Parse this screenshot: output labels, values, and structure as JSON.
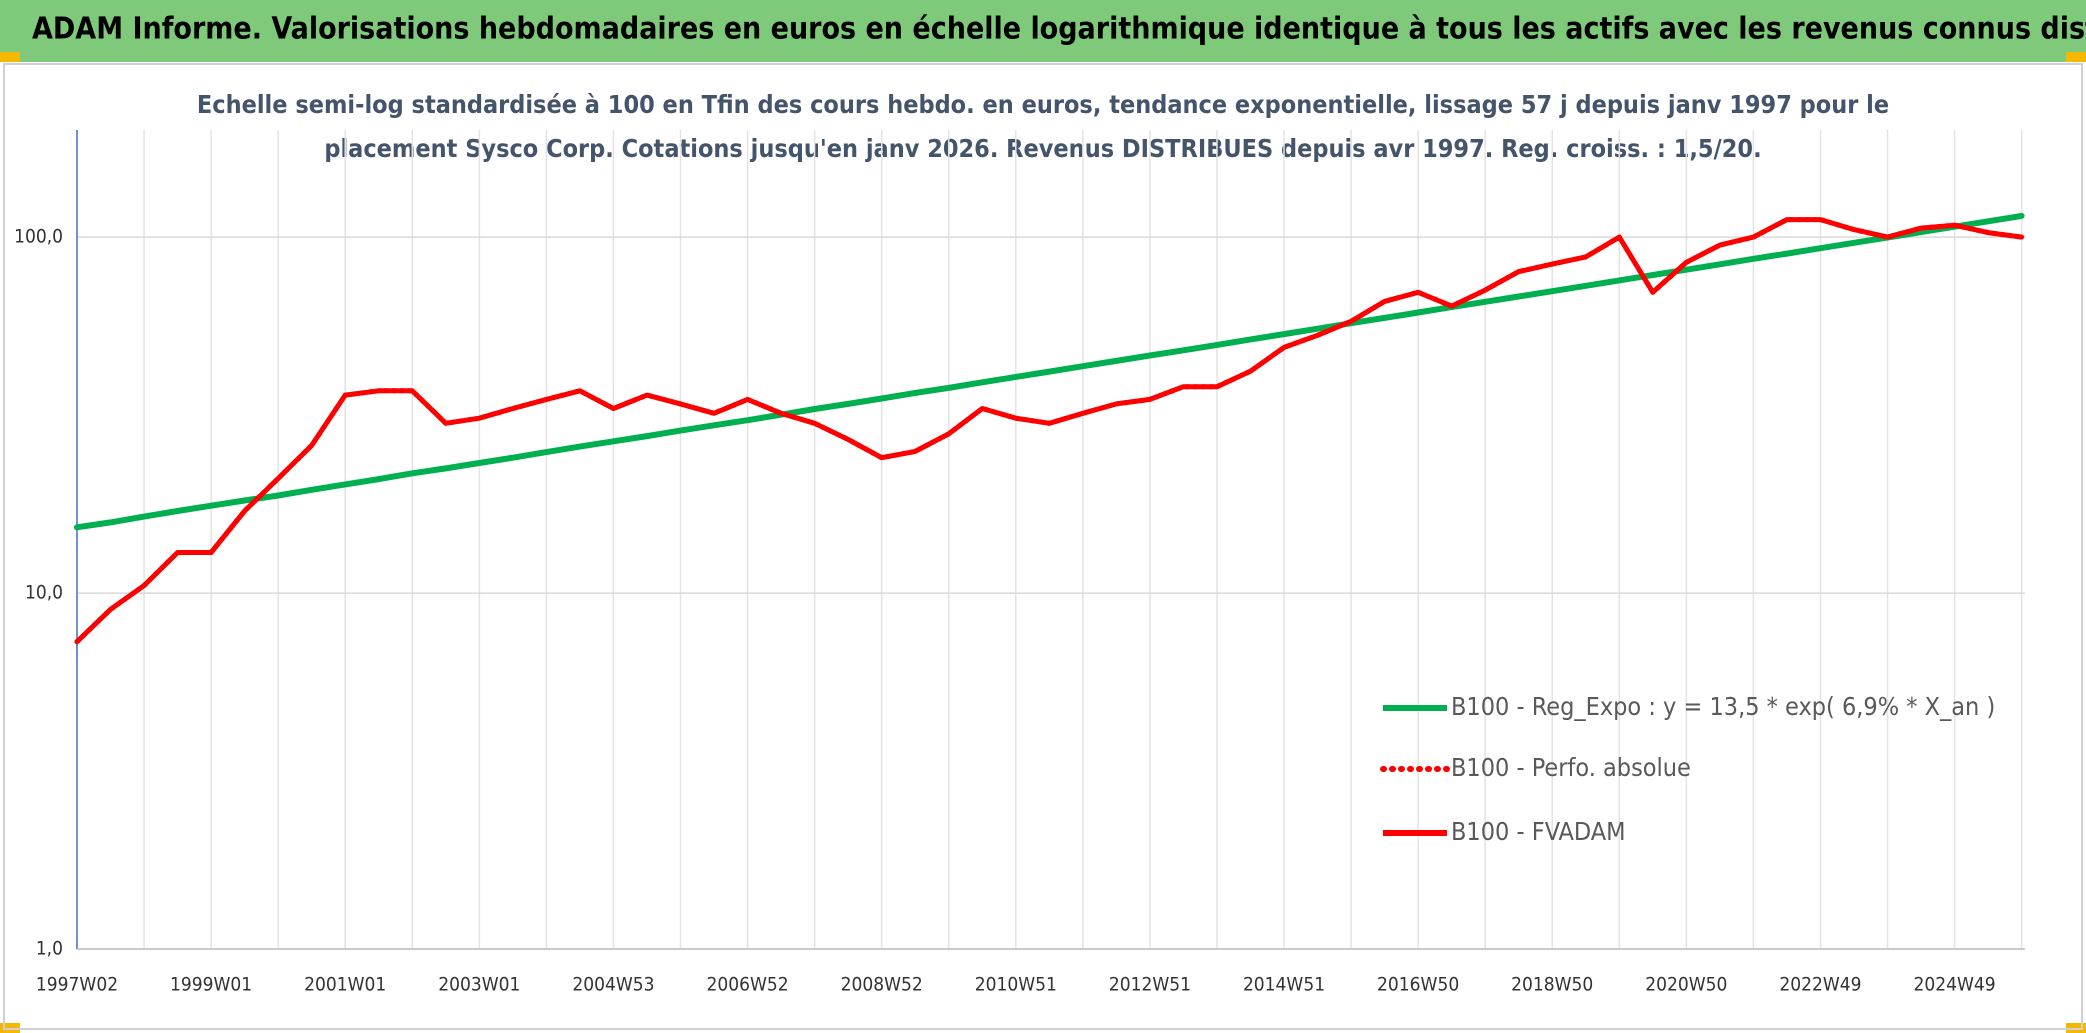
{
  "chart_data": {
    "type": "line",
    "title": "ADAM Informe. Valorisations hebdomadaires en euros en échelle logarithmique identique à tous les actifs avec les revenus connus distribués",
    "subtitle": [
      "Echelle semi-log standardisée à 100 en Tfin des cours hebdo. en euros, tendance exponentielle, lissage 57 j depuis janv 1997 pour le",
      "placement Sysco Corp. Cotations jusqu'en janv 2026. Revenus DISTRIBUES depuis avr 1997. Reg. croiss. : 1,5/20."
    ],
    "categories": [
      "1997W02",
      null,
      null,
      null,
      "1999W01",
      null,
      null,
      null,
      "2001W01",
      null,
      null,
      null,
      "2003W01",
      null,
      null,
      null,
      "2004W53",
      null,
      null,
      null,
      "2006W52",
      null,
      null,
      null,
      "2008W52",
      null,
      null,
      null,
      "2010W51",
      null,
      null,
      null,
      "2012W51",
      null,
      null,
      null,
      "2014W51",
      null,
      null,
      null,
      "2016W50",
      null,
      null,
      null,
      "2018W50",
      null,
      null,
      null,
      "2020W50",
      null,
      null,
      null,
      "2022W49",
      null,
      null,
      null,
      "2024W49",
      null,
      null
    ],
    "series": [
      {
        "name": "B100 - Reg_Expo : y = 13,5 * exp( 6,9% *  X_an )",
        "color": "#00b050",
        "style": "solid",
        "values": [
          15.3,
          15.8,
          16.4,
          17.0,
          17.6,
          18.2,
          18.8,
          19.5,
          20.2,
          20.9,
          21.7,
          22.4,
          23.2,
          24.0,
          24.9,
          25.8,
          26.7,
          27.6,
          28.6,
          29.6,
          30.6,
          31.7,
          32.9,
          34.0,
          35.2,
          36.5,
          37.7,
          39.1,
          40.5,
          41.9,
          43.4,
          44.9,
          46.5,
          48.1,
          49.8,
          51.6,
          53.4,
          55.3,
          57.3,
          59.3,
          61.4,
          63.6,
          65.8,
          68.1,
          70.5,
          73.0,
          75.6,
          78.3,
          81.0,
          83.9,
          86.9,
          89.9,
          93.1,
          96.4,
          99.8,
          103.3,
          107.0,
          110.8,
          114.7
        ]
      },
      {
        "name": "B100 - Perfo. absolue",
        "color": "#ff0000",
        "style": "dotted",
        "values": [
          7.3,
          9,
          10.5,
          13,
          13,
          17,
          21,
          26,
          36,
          37,
          37,
          30,
          31,
          33,
          35,
          37,
          33,
          36,
          34,
          32,
          35,
          32,
          30,
          27,
          24,
          25,
          28,
          33,
          31,
          30,
          32,
          34,
          35,
          38,
          38,
          42,
          49,
          53,
          58,
          66,
          70,
          64,
          71,
          80,
          84,
          88,
          100,
          70,
          85,
          95,
          100,
          112,
          112,
          105,
          100,
          106,
          108,
          103,
          100
        ]
      },
      {
        "name": "B100 - FVADAM",
        "color": "#ff0000",
        "style": "solid",
        "values": [
          7.3,
          9,
          10.5,
          13,
          13,
          17,
          21,
          26,
          36,
          37,
          37,
          30,
          31,
          33,
          35,
          37,
          33,
          36,
          34,
          32,
          35,
          32,
          30,
          27,
          24,
          25,
          28,
          33,
          31,
          30,
          32,
          34,
          35,
          38,
          38,
          42,
          49,
          53,
          58,
          66,
          70,
          64,
          71,
          80,
          84,
          88,
          100,
          70,
          85,
          95,
          100,
          112,
          112,
          105,
          100,
          106,
          108,
          103,
          100
        ]
      }
    ],
    "ylim": [
      1,
      200
    ],
    "yticks": [
      {
        "value": 1,
        "label": "1,0"
      },
      {
        "value": 10,
        "label": "10,0"
      },
      {
        "value": 100,
        "label": "100,0"
      }
    ],
    "log_y": true,
    "grid": true,
    "legend": "lower right"
  }
}
